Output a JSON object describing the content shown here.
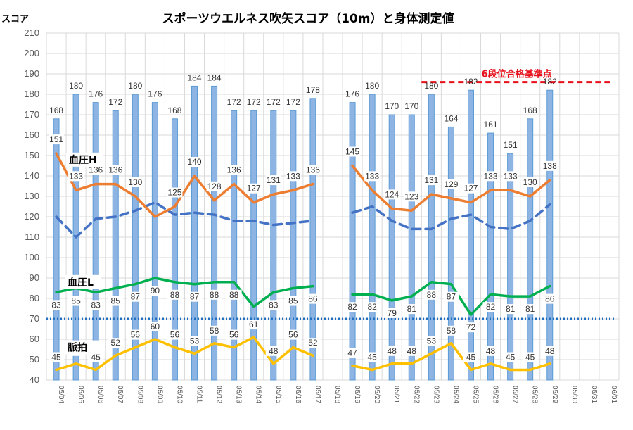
{
  "chart_data": {
    "type": "bar+line",
    "title": "スポーツウエルネス吹矢スコア（10m）と身体測定値",
    "ylabel": "スコア",
    "ylim": [
      40,
      210
    ],
    "yticks": [
      40,
      50,
      60,
      70,
      80,
      90,
      100,
      110,
      120,
      130,
      140,
      150,
      160,
      170,
      180,
      190,
      200,
      210
    ],
    "grid": true,
    "categories": [
      "05/04",
      "05/05",
      "05/06",
      "05/07",
      "05/08",
      "05/09",
      "05/10",
      "05/11",
      "05/12",
      "05/13",
      "05/14",
      "05/15",
      "05/16",
      "05/17",
      "05/18",
      "05/19",
      "05/20",
      "05/21",
      "05/22",
      "05/23",
      "05/24",
      "05/25",
      "05/26",
      "05/27",
      "05/28",
      "05/29",
      "05/30",
      "05/31",
      "06/01"
    ],
    "series": [
      {
        "key": "score",
        "values": [
          168,
          180,
          176,
          172,
          180,
          176,
          168,
          184,
          184,
          172,
          172,
          172,
          172,
          178,
          null,
          176,
          180,
          170,
          170,
          180,
          164,
          182,
          161,
          151,
          168,
          182,
          null,
          null,
          null
        ],
        "labels": [
          "168",
          "180",
          "176",
          "172",
          "180",
          "176",
          "168",
          "184",
          "184",
          "172",
          "172",
          "172",
          "172",
          "178",
          "",
          "176",
          "180",
          "170",
          "170",
          "180",
          "164",
          "182",
          "161",
          "151",
          "168",
          "182",
          "",
          "",
          ""
        ],
        "color": "#8db4e2"
      },
      {
        "key": "bp_h",
        "name": "血圧H",
        "values": [
          151,
          133,
          136,
          136,
          130,
          120,
          125,
          140,
          128,
          136,
          127,
          131,
          133,
          136,
          null,
          145,
          133,
          124,
          123,
          131,
          129,
          127,
          133,
          133,
          130,
          138,
          null,
          null,
          null
        ],
        "labels": [
          "151",
          "133",
          "136",
          "136",
          "130",
          "",
          "125",
          "140",
          "128",
          "136",
          "127",
          "131",
          "133",
          "136",
          "",
          "145",
          "133",
          "124",
          "123",
          "131",
          "129",
          "127",
          "133",
          "133",
          "130",
          "138",
          "",
          "",
          ""
        ],
        "color": "#ed7d31"
      },
      {
        "key": "bp_dashed",
        "values": [
          120,
          110,
          119,
          120,
          123,
          127,
          121,
          122,
          121,
          118,
          118,
          116,
          117,
          118,
          null,
          122,
          125,
          118,
          114,
          114,
          119,
          121,
          115,
          114,
          118,
          126,
          null,
          null,
          null
        ],
        "color": "#4472c4"
      },
      {
        "key": "bp_l",
        "name": "血圧L",
        "values": [
          83,
          85,
          83,
          85,
          87,
          90,
          88,
          87,
          88,
          88,
          76,
          83,
          85,
          86,
          null,
          82,
          82,
          79,
          81,
          88,
          87,
          72,
          82,
          81,
          81,
          86,
          null,
          null,
          null
        ],
        "labels": [
          "83",
          "85",
          "83",
          "85",
          "87",
          "90",
          "88",
          "87",
          "88",
          "88",
          "",
          "83",
          "85",
          "86",
          "",
          "82",
          "82",
          "79",
          "81",
          "88",
          "87",
          "72",
          "82",
          "81",
          "81",
          "86",
          "",
          "",
          ""
        ],
        "color": "#00b050"
      },
      {
        "key": "pulse",
        "name": "脈拍",
        "values": [
          45,
          48,
          45,
          52,
          56,
          60,
          56,
          53,
          58,
          56,
          61,
          48,
          56,
          52,
          null,
          47,
          45,
          48,
          48,
          53,
          58,
          45,
          48,
          45,
          45,
          48,
          null,
          null,
          null
        ],
        "labels": [
          "45",
          "48",
          "45",
          "52",
          "56",
          "60",
          "56",
          "53",
          "58",
          "56",
          "61",
          "48",
          "56",
          "52",
          "",
          "47",
          "45",
          "48",
          "48",
          "53",
          "58",
          "45",
          "48",
          "45",
          "45",
          "48",
          "",
          "",
          ""
        ],
        "color": "#ffc000"
      }
    ],
    "reference_lines": [
      {
        "value": 70,
        "color": "#1f6fc2",
        "style": "dotted"
      },
      {
        "value": 186,
        "label": "6段位合格基準点",
        "color": "#e8101a",
        "style": "dashed",
        "from_category": "05/23"
      }
    ]
  }
}
